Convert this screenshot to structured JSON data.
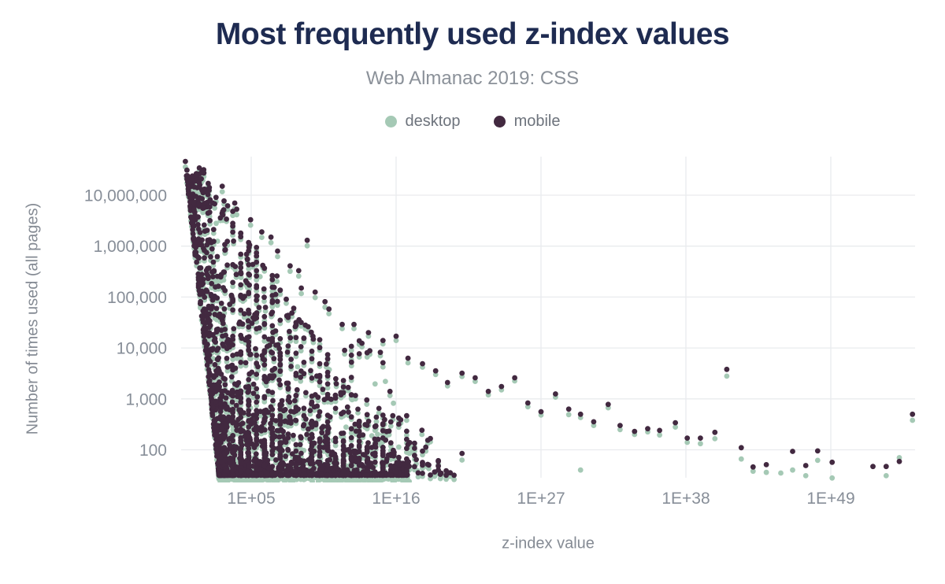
{
  "header": {
    "title": "Most frequently used z-index values",
    "subtitle": "Web Almanac 2019: CSS"
  },
  "legend": {
    "items": [
      {
        "name": "desktop",
        "label": "desktop",
        "color": "#a5c9b5"
      },
      {
        "name": "mobile",
        "label": "mobile",
        "color": "#422940"
      }
    ]
  },
  "colors": {
    "desktop": "#a5c9b5",
    "mobile": "#422940",
    "title": "#1e2b51",
    "subtitle": "#8b9199",
    "tick_label": "#878e98",
    "axis_title": "#858b94",
    "grid": "#e9ebee",
    "background": "#ffffff"
  },
  "chart_data": {
    "type": "scatter",
    "title": "Most frequently used z-index values",
    "subtitle": "Web Almanac 2019: CSS",
    "xlabel": "z-index value",
    "ylabel": "Number of times used (all pages)",
    "x_scale": "log",
    "y_scale": "log",
    "legend_position": "top",
    "grid": true,
    "x_ticks": [
      {
        "label": "1E+05",
        "log10": 5
      },
      {
        "label": "1E+16",
        "log10": 16
      },
      {
        "label": "1E+27",
        "log10": 27
      },
      {
        "label": "1E+38",
        "log10": 38
      },
      {
        "label": "1E+49",
        "log10": 49
      }
    ],
    "y_ticks": [
      {
        "label": "10,000,000",
        "value": 10000000
      },
      {
        "label": "1,000,000",
        "value": 1000000
      },
      {
        "label": "100,000",
        "value": 100000
      },
      {
        "label": "10,000",
        "value": 10000
      },
      {
        "label": "1,000",
        "value": 1000
      },
      {
        "label": "100",
        "value": 100
      }
    ],
    "x_range_log10": [
      -0.35,
      55.4
    ],
    "y_range": [
      28,
      46000000
    ],
    "series_names": [
      "desktop",
      "mobile"
    ],
    "desktop_shadow_factor": 0.78,
    "apex_points_mobile": [
      [
        0.0,
        46000000
      ],
      [
        0.12,
        31000000
      ],
      [
        0.2,
        23000000
      ],
      [
        0.75,
        19000000
      ],
      [
        0.9,
        14000000
      ],
      [
        1.8,
        12500000
      ],
      [
        2.8,
        15000000
      ],
      [
        0.65,
        7200000
      ],
      [
        1.05,
        6800000
      ],
      [
        1.85,
        5900000
      ],
      [
        2.85,
        4100000
      ],
      [
        3.75,
        7000000
      ],
      [
        3.9,
        5300000
      ],
      [
        4.95,
        3300000
      ],
      [
        5.8,
        1900000
      ],
      [
        6.5,
        1500000
      ],
      [
        9.25,
        1300000
      ],
      [
        7.0,
        800000
      ],
      [
        7.95,
        410000
      ],
      [
        8.6,
        330000
      ],
      [
        6.95,
        260000
      ],
      [
        8.8,
        150000
      ],
      [
        9.85,
        125000
      ],
      [
        10.6,
        81000
      ]
    ],
    "tail_points": [
      [
        10.9,
        58000,
        47000
      ],
      [
        11.9,
        29000,
        24000
      ],
      [
        12.8,
        29000,
        24000
      ],
      [
        13.9,
        20000,
        17000
      ],
      [
        14.0,
        8800,
        7500
      ],
      [
        14.8,
        8200,
        7000
      ],
      [
        15.0,
        14000,
        12000
      ],
      [
        16.0,
        17000,
        14000
      ],
      [
        16.9,
        6300,
        5100
      ],
      [
        18.0,
        4900,
        4200
      ],
      [
        19.0,
        3550,
        3000
      ],
      [
        19.9,
        2100,
        1800
      ],
      [
        21.0,
        3200,
        2750
      ],
      [
        22.0,
        2600,
        2200
      ],
      [
        23.0,
        1400,
        1200
      ],
      [
        24.0,
        1750,
        1500
      ],
      [
        25.0,
        2600,
        2250
      ],
      [
        26.0,
        830,
        700
      ],
      [
        27.0,
        560,
        480
      ],
      [
        28.1,
        1250,
        1080
      ],
      [
        29.1,
        630,
        490
      ],
      [
        30.0,
        500,
        430
      ],
      [
        31.0,
        355,
        300
      ],
      [
        32.1,
        780,
        670
      ],
      [
        33.0,
        300,
        250
      ],
      [
        34.1,
        230,
        200
      ],
      [
        35.1,
        260,
        225
      ],
      [
        36.0,
        240,
        195
      ],
      [
        37.2,
        340,
        280
      ],
      [
        38.1,
        170,
        140
      ],
      [
        39.1,
        170,
        132
      ],
      [
        40.2,
        220,
        165
      ],
      [
        41.1,
        3800,
        2800
      ],
      [
        42.2,
        110,
        66
      ],
      [
        43.1,
        46,
        38
      ],
      [
        44.1,
        51,
        36
      ],
      [
        46.1,
        93,
        40
      ],
      [
        47.1,
        49,
        31
      ],
      [
        48.0,
        95,
        62
      ],
      [
        49.1,
        57,
        28
      ],
      [
        52.2,
        47,
        null
      ],
      [
        53.2,
        47,
        31
      ],
      [
        54.2,
        59,
        70
      ],
      [
        55.2,
        500,
        380
      ]
    ],
    "low_points_mobile": [
      [
        15.2,
        155
      ],
      [
        16.05,
        56
      ],
      [
        16.9,
        56
      ],
      [
        16.95,
        47
      ],
      [
        21.0,
        85
      ]
    ],
    "low_points_desktop": [
      [
        15.9,
        42
      ],
      [
        16.0,
        33
      ],
      [
        16.55,
        35
      ],
      [
        17.0,
        85
      ],
      [
        19.0,
        34
      ],
      [
        20.1,
        32
      ],
      [
        20.35,
        31
      ],
      [
        21.0,
        63
      ],
      [
        30.0,
        40
      ],
      [
        45.2,
        35
      ]
    ],
    "dense_cluster": {
      "comment_free_params": true,
      "count": 2200,
      "seed": 1337,
      "count_log_min": 1.5,
      "count_log_max": 7.55,
      "count_skew": 3.8,
      "left_edge_base": 2.55,
      "left_edge_slope": 0.42,
      "right_edge_base": 17.0,
      "right_edge_slope": 2.6,
      "x_skew": 1.75,
      "stripe_step": 0.6,
      "stripe_prob": 0.5,
      "stripe_min_lx": 3.2,
      "desktop_dy_log": 0.065,
      "desktop_extra_prob": 0.06
    },
    "sprinkle": {
      "count": 90,
      "seed": 77,
      "count_log_min": 1.5,
      "count_log_max": 4.2,
      "count_skew": 2.0,
      "edge_base": 17.0,
      "edge_slope": 2.6,
      "beyond_decades": 3.5,
      "stripe_step": 0.6,
      "stripe_prob": 0.6,
      "desktop_dy_log": 0.07,
      "desktop_only_prob": 0.15
    }
  }
}
